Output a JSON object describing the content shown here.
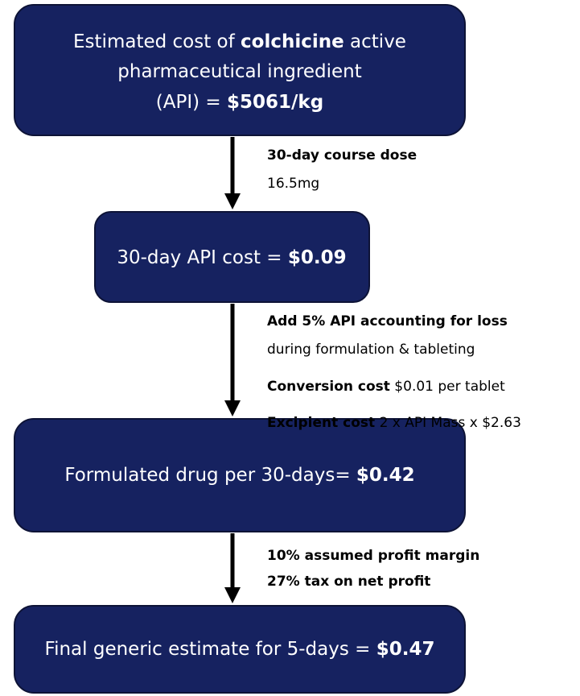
{
  "nodes": [
    {
      "lines": [
        [
          {
            "text": "Estimated cost of ",
            "bold": false
          },
          {
            "text": "colchicine",
            "bold": true
          },
          {
            "text": " active",
            "bold": false
          }
        ],
        [
          {
            "text": "pharmaceutical ingredient",
            "bold": false
          }
        ],
        [
          {
            "text": "(API) = ",
            "bold": false
          },
          {
            "text": "$5061/kg",
            "bold": true
          }
        ]
      ]
    },
    {
      "lines": [
        [
          {
            "text": "30-day API cost = ",
            "bold": false
          },
          {
            "text": "$0.09",
            "bold": true
          }
        ]
      ]
    },
    {
      "lines": [
        [
          {
            "text": "Formulated drug per 30-days= ",
            "bold": false
          },
          {
            "text": "$0.42",
            "bold": true
          }
        ]
      ]
    },
    {
      "lines": [
        [
          {
            "text": "Final generic estimate for 5-days = ",
            "bold": false
          },
          {
            "text": "$0.47",
            "bold": true
          }
        ]
      ]
    }
  ],
  "edges": [
    {
      "lines": [
        [
          {
            "text": "30-day course dose",
            "bold": true
          }
        ],
        [
          {
            "text": "16.5mg",
            "bold": false
          }
        ]
      ]
    },
    {
      "lines": [
        [
          {
            "text": "Add 5% API accounting for loss",
            "bold": true
          }
        ],
        [
          {
            "text": "during formulation & tableting",
            "bold": false
          }
        ],
        [
          {
            "text": "Conversion cost",
            "bold": true
          },
          {
            "text": " $0.01 per tablet",
            "bold": false
          }
        ],
        [
          {
            "text": "Excipient cost",
            "bold": true
          },
          {
            "text": " 2 x API Mass x $2.63",
            "bold": false
          }
        ]
      ]
    },
    {
      "lines": [
        [
          {
            "text": "10% assumed profit margin",
            "bold": true
          }
        ],
        [
          {
            "text": "27% tax on net profit",
            "bold": true
          }
        ]
      ]
    }
  ]
}
